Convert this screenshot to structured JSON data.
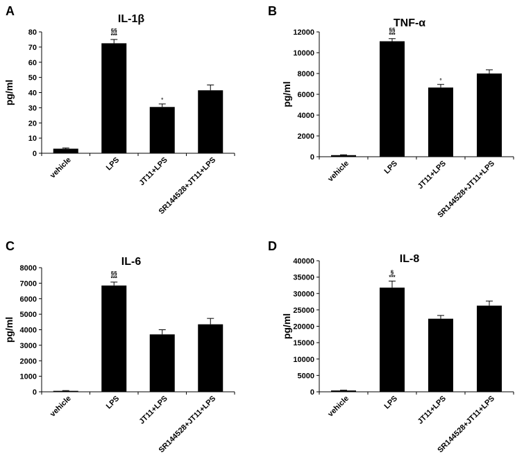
{
  "chart_data": [
    {
      "type": "bar",
      "panel": "A",
      "title": "IL-1β",
      "ylabel": "pg/ml",
      "categories": [
        "vehicle",
        "LPS",
        "JT11+LPS",
        "SR144528+JT11+LPS"
      ],
      "values": [
        3,
        72.5,
        30.5,
        41.5
      ],
      "errors": [
        0.5,
        2.5,
        2,
        3.5
      ],
      "annotations": [
        [],
        [
          "§§",
          "***"
        ],
        [
          "°"
        ],
        []
      ],
      "ylim": [
        0,
        80
      ],
      "yticks": [
        0,
        10,
        20,
        30,
        40,
        50,
        60,
        70,
        80
      ],
      "ytick_labels": [
        "0",
        "10",
        "20",
        "30",
        "40",
        "50",
        "60",
        "70",
        "80"
      ]
    },
    {
      "type": "bar",
      "panel": "B",
      "title": "TNF-α",
      "ylabel": "pg/ml",
      "categories": [
        "vehicle",
        "LPS",
        "JT11+LPS",
        "SR144528+JT11+LPS"
      ],
      "values": [
        150,
        11100,
        6650,
        8000
      ],
      "errors": [
        40,
        250,
        300,
        350
      ],
      "annotations": [
        [],
        [
          "§§",
          "***"
        ],
        [
          "°"
        ],
        []
      ],
      "ylim": [
        0,
        12000
      ],
      "yticks": [
        0,
        2000,
        4000,
        6000,
        8000,
        10000,
        12000
      ],
      "ytick_labels": [
        "0",
        "2000",
        "4000",
        "6000",
        "8000",
        "10000",
        "12000"
      ]
    },
    {
      "type": "bar",
      "panel": "C",
      "title": "IL-6",
      "ylabel": "pg/ml",
      "categories": [
        "vehicle",
        "LPS",
        "JT11+LPS",
        "SR144528+JT11+LPS"
      ],
      "values": [
        60,
        6850,
        3700,
        4350
      ],
      "errors": [
        20,
        220,
        300,
        380
      ],
      "annotations": [
        [],
        [
          "§§",
          "***"
        ],
        [],
        []
      ],
      "ylim": [
        0,
        8000
      ],
      "yticks": [
        0,
        1000,
        2000,
        3000,
        4000,
        5000,
        6000,
        7000,
        8000
      ],
      "ytick_labels": [
        "0",
        "1000",
        "2000",
        "3000",
        "4000",
        "5000",
        "6000",
        "7000",
        "8000"
      ]
    },
    {
      "type": "bar",
      "panel": "D",
      "title": "IL-8",
      "ylabel": "pg/ml",
      "categories": [
        "vehicle",
        "LPS",
        "JT11+LPS",
        "SR144528+JT11+LPS"
      ],
      "values": [
        400,
        31800,
        22300,
        26300
      ],
      "errors": [
        100,
        2000,
        1000,
        1400
      ],
      "annotations": [
        [],
        [
          "§",
          "***"
        ],
        [],
        []
      ],
      "ylim": [
        0,
        40000
      ],
      "yticks": [
        0,
        5000,
        10000,
        15000,
        20000,
        25000,
        30000,
        35000,
        40000
      ],
      "ytick_labels": [
        "0",
        "5000",
        "10000",
        "15000",
        "20000",
        "25000",
        "30000",
        "35000",
        "40000"
      ]
    }
  ],
  "colors": {
    "bar": "#000000",
    "axis": "#000000",
    "background": "#ffffff"
  }
}
